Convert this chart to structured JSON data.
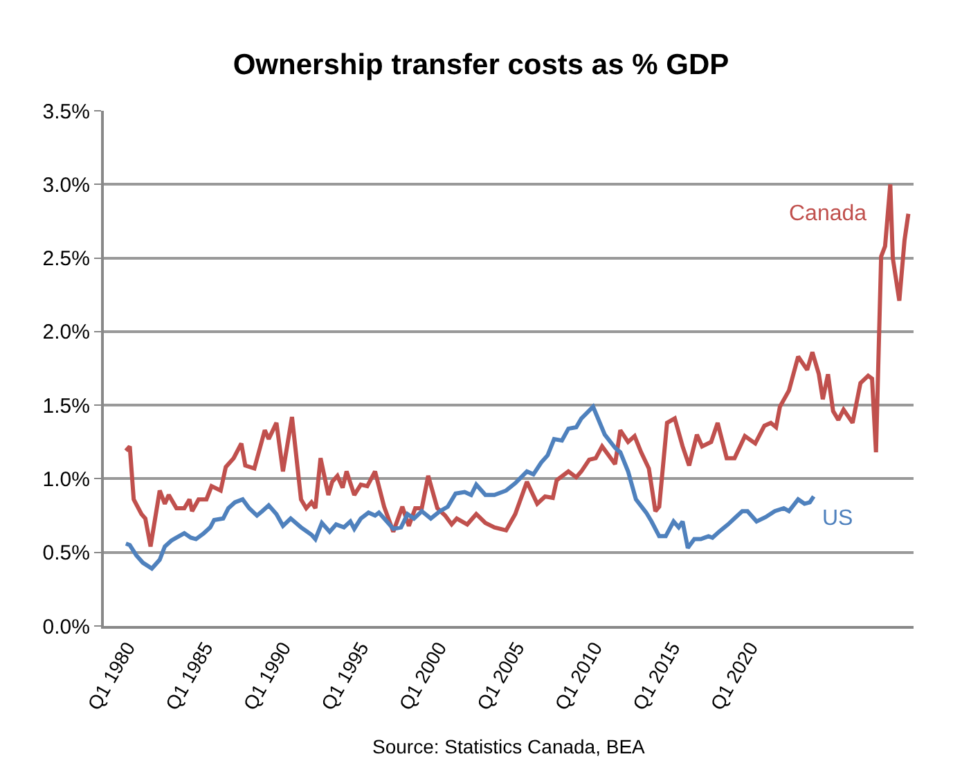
{
  "chart_data": {
    "type": "line",
    "title": "Ownership transfer costs as % GDP",
    "annotations": [
      "Source: Statistics Canada, BEA"
    ],
    "xlim": [
      "1978-07",
      "2030-07"
    ],
    "xticks": [
      {
        "value": "1980-01",
        "label": "Q1 1980"
      },
      {
        "value": "1985-01",
        "label": "Q1 1985"
      },
      {
        "value": "1990-01",
        "label": "Q1 1990"
      },
      {
        "value": "1995-01",
        "label": "Q1 1995"
      },
      {
        "value": "2000-01",
        "label": "Q1 2000"
      },
      {
        "value": "2005-01",
        "label": "Q1 2005"
      },
      {
        "value": "2010-01",
        "label": "Q1 2010"
      },
      {
        "value": "2015-01",
        "label": "Q1 2015"
      },
      {
        "value": "2020-01",
        "label": "Q1 2020"
      }
    ],
    "ylim": [
      0,
      3.5
    ],
    "yticks": [
      {
        "value": 0,
        "label": "0.0%"
      },
      {
        "value": 0.5,
        "label": "0.5%"
      },
      {
        "value": 1.0,
        "label": "1.0%"
      },
      {
        "value": 1.5,
        "label": "1.5%"
      },
      {
        "value": 2.0,
        "label": "2.0%"
      },
      {
        "value": 2.5,
        "label": "2.5%"
      },
      {
        "value": 3.0,
        "label": "3.0%"
      },
      {
        "value": 3.5,
        "label": "3.5%"
      }
    ],
    "grid": "y",
    "legend": false,
    "marker": "none",
    "line_style": "solid",
    "series": [
      {
        "name": "Canada",
        "color": "#c0504d",
        "x": [
          "1979-12",
          "1980-03",
          "1980-06",
          "1980-12",
          "1981-03",
          "1981-07",
          "1982-02",
          "1982-06",
          "1982-09",
          "1983-03",
          "1983-09",
          "1984-01",
          "1984-03",
          "1984-08",
          "1985-02",
          "1985-06",
          "1986-01",
          "1986-05",
          "1986-11",
          "1987-05",
          "1987-08",
          "1988-03",
          "1988-11",
          "1989-02",
          "1989-08",
          "1990-01",
          "1990-08",
          "1991-03",
          "1991-07",
          "1991-11",
          "1992-02",
          "1992-06",
          "1992-12",
          "1993-03",
          "1993-07",
          "1993-11",
          "1994-02",
          "1994-08",
          "1995-01",
          "1995-06",
          "1995-12",
          "1996-07",
          "1997-02",
          "1997-09",
          "1998-02",
          "1998-07",
          "1998-12",
          "1999-05",
          "1999-12",
          "2000-06",
          "2000-11",
          "2001-03",
          "2001-11",
          "2002-06",
          "2003-01",
          "2003-08",
          "2004-05",
          "2004-12",
          "2005-09",
          "2006-05",
          "2006-11",
          "2007-05",
          "2007-08",
          "2008-05",
          "2008-11",
          "2009-03",
          "2009-09",
          "2010-02",
          "2010-07",
          "2011-05",
          "2011-09",
          "2012-03",
          "2012-08",
          "2013-01",
          "2013-07",
          "2013-12",
          "2014-03",
          "2014-09",
          "2015-03",
          "2015-09",
          "2016-02",
          "2016-08",
          "2016-12",
          "2017-07",
          "2017-12",
          "2018-07",
          "2019-01",
          "2019-09",
          "2020-05",
          "2020-12",
          "2021-05",
          "2021-09",
          "2021-12",
          "2022-07",
          "2023-02",
          "2023-09",
          "2024-01",
          "2024-06",
          "2024-09",
          "2025-01",
          "2025-05",
          "2025-09",
          "2026-01",
          "2026-08",
          "2027-02",
          "2027-08",
          "2027-11",
          "2028-02",
          "2028-06",
          "2028-09",
          "2029-01",
          "2029-03",
          "2029-08",
          "2029-12",
          "2030-03"
        ],
        "values": [
          1.19,
          1.22,
          0.86,
          0.76,
          0.73,
          0.54,
          0.92,
          0.83,
          0.89,
          0.8,
          0.8,
          0.86,
          0.78,
          0.86,
          0.86,
          0.95,
          0.92,
          1.08,
          1.14,
          1.24,
          1.09,
          1.07,
          1.33,
          1.27,
          1.38,
          1.05,
          1.42,
          0.86,
          0.8,
          0.84,
          0.8,
          1.14,
          0.89,
          0.98,
          1.02,
          0.94,
          1.05,
          0.89,
          0.96,
          0.95,
          1.05,
          0.81,
          0.64,
          0.81,
          0.68,
          0.8,
          0.8,
          1.02,
          0.8,
          0.75,
          0.69,
          0.73,
          0.69,
          0.76,
          0.7,
          0.67,
          0.65,
          0.76,
          0.98,
          0.83,
          0.88,
          0.87,
          0.99,
          1.05,
          1.01,
          1.05,
          1.13,
          1.14,
          1.22,
          1.1,
          1.33,
          1.25,
          1.29,
          1.18,
          1.07,
          0.78,
          0.81,
          1.38,
          1.41,
          1.22,
          1.09,
          1.3,
          1.22,
          1.25,
          1.38,
          1.14,
          1.14,
          1.29,
          1.24,
          1.36,
          1.38,
          1.35,
          1.49,
          1.6,
          1.83,
          1.74,
          1.86,
          1.71,
          1.54,
          1.71,
          1.46,
          1.4,
          1.47,
          1.38,
          1.65,
          1.7,
          1.68,
          1.18,
          2.51,
          2.58,
          3.0,
          2.5,
          2.21,
          2.62,
          2.8
        ]
      },
      {
        "name": "US",
        "color": "#4f81bd",
        "x": [
          "1979-12",
          "1980-03",
          "1980-08",
          "1981-01",
          "1981-08",
          "1982-02",
          "1982-06",
          "1982-11",
          "1983-03",
          "1983-09",
          "1984-02",
          "1984-06",
          "1984-12",
          "1985-05",
          "1985-08",
          "1986-03",
          "1986-07",
          "1986-12",
          "1987-06",
          "1987-11",
          "1988-05",
          "1988-09",
          "1989-02",
          "1989-08",
          "1990-01",
          "1990-07",
          "1991-03",
          "1991-11",
          "1992-02",
          "1992-07",
          "1993-01",
          "1993-06",
          "1993-12",
          "1994-05",
          "1994-08",
          "1995-01",
          "1995-07",
          "1995-12",
          "1996-03",
          "1996-09",
          "1997-02",
          "1997-08",
          "1998-01",
          "1998-06",
          "1998-12",
          "1999-07",
          "2000-02",
          "2000-08",
          "2001-02",
          "2001-09",
          "2002-02",
          "2002-06",
          "2003-01",
          "2003-08",
          "2004-05",
          "2004-12",
          "2005-09",
          "2006-02",
          "2006-08",
          "2007-01",
          "2007-06",
          "2007-12",
          "2008-05",
          "2008-11",
          "2009-03",
          "2009-12",
          "2010-09",
          "2011-05",
          "2011-09",
          "2012-03",
          "2012-09",
          "2013-05",
          "2013-09",
          "2014-03",
          "2014-08",
          "2015-02",
          "2015-06",
          "2015-09",
          "2016-01",
          "2016-06",
          "2016-11",
          "2017-05",
          "2017-08",
          "2018-01",
          "2018-08",
          "2019-02",
          "2019-07",
          "2019-11",
          "2020-06",
          "2021-01",
          "2021-08",
          "2022-03",
          "2022-07",
          "2023-02",
          "2023-07",
          "2023-11",
          "2024-02"
        ],
        "values": [
          0.56,
          0.55,
          0.48,
          0.43,
          0.39,
          0.45,
          0.54,
          0.58,
          0.6,
          0.63,
          0.6,
          0.59,
          0.63,
          0.67,
          0.72,
          0.73,
          0.8,
          0.84,
          0.86,
          0.8,
          0.75,
          0.78,
          0.82,
          0.76,
          0.68,
          0.73,
          0.67,
          0.62,
          0.59,
          0.7,
          0.64,
          0.69,
          0.67,
          0.71,
          0.66,
          0.73,
          0.77,
          0.75,
          0.77,
          0.71,
          0.66,
          0.67,
          0.76,
          0.73,
          0.78,
          0.73,
          0.78,
          0.81,
          0.9,
          0.91,
          0.89,
          0.96,
          0.89,
          0.89,
          0.92,
          0.97,
          1.05,
          1.03,
          1.11,
          1.16,
          1.27,
          1.26,
          1.34,
          1.35,
          1.41,
          1.49,
          1.3,
          1.21,
          1.18,
          1.05,
          0.86,
          0.77,
          0.71,
          0.61,
          0.61,
          0.71,
          0.67,
          0.71,
          0.53,
          0.59,
          0.59,
          0.61,
          0.6,
          0.64,
          0.69,
          0.74,
          0.78,
          0.78,
          0.71,
          0.74,
          0.78,
          0.8,
          0.78,
          0.86,
          0.83,
          0.84,
          0.88
        ]
      }
    ]
  }
}
